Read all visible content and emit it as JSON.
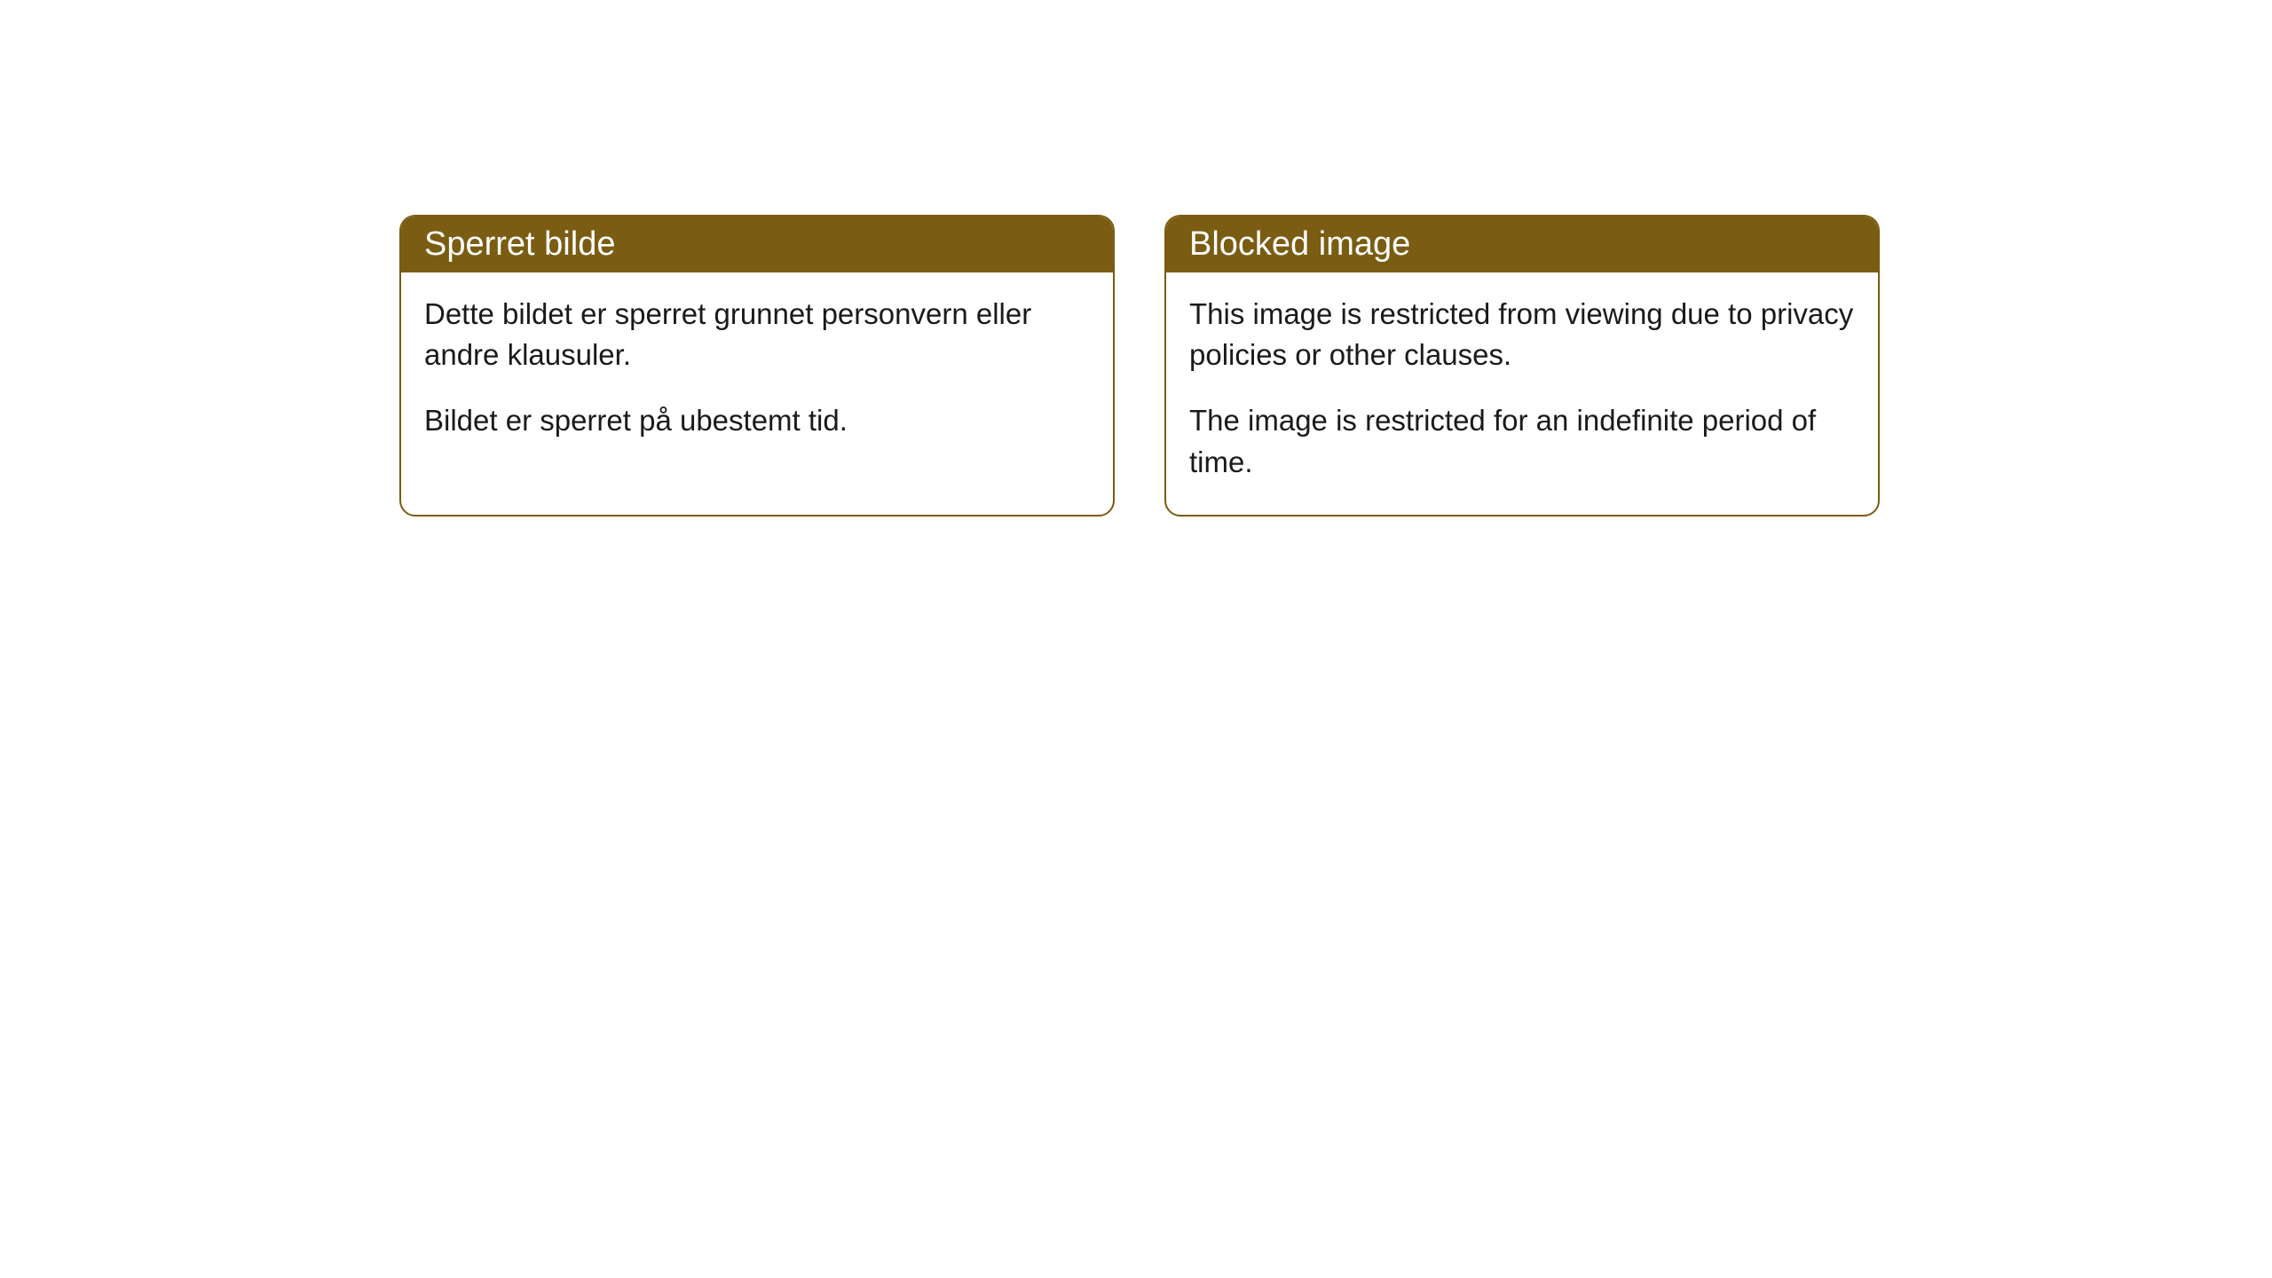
{
  "cards": [
    {
      "title": "Sperret bilde",
      "paragraph1": "Dette bildet er sperret grunnet personvern eller andre klausuler.",
      "paragraph2": "Bildet er sperret på ubestemt tid."
    },
    {
      "title": "Blocked image",
      "paragraph1": "This image is restricted from viewing due to privacy policies or other clauses.",
      "paragraph2": "The image is restricted for an indefinite period of time."
    }
  ],
  "styling": {
    "header_background_color": "#7a5c12",
    "header_text_color": "#ffffff",
    "card_border_color": "#7a5c12",
    "card_background_color": "#ffffff",
    "body_text_color": "#1a1a1a",
    "border_radius": 18,
    "header_fontsize": 38,
    "body_fontsize": 33
  }
}
